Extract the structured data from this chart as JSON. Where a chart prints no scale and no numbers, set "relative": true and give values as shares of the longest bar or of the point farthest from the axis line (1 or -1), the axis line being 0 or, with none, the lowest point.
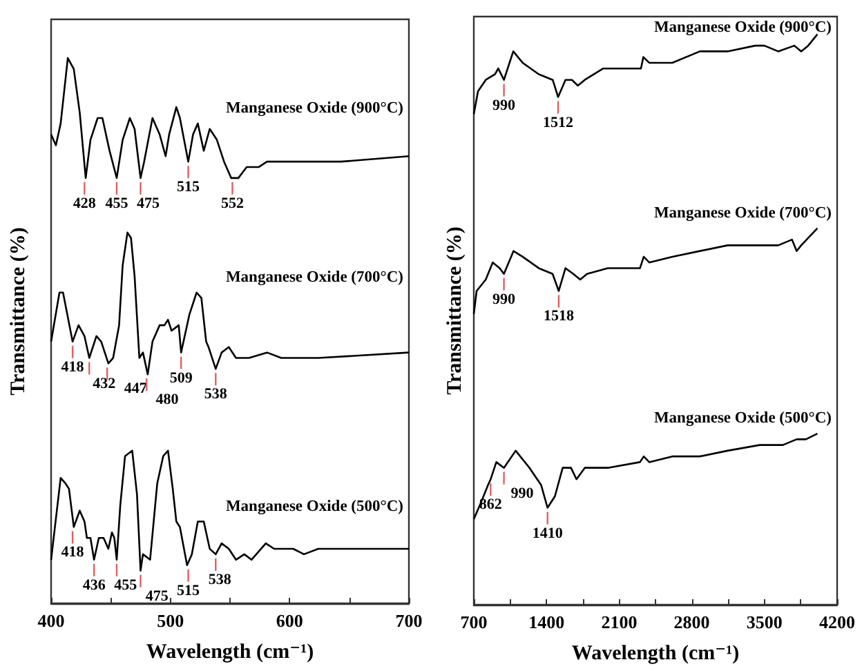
{
  "chart_data": [
    {
      "type": "line",
      "relative": true,
      "xlabel": "Wavelength (cm⁻¹)",
      "ylabel": "Transmittance (%)",
      "xlim": [
        400,
        700
      ],
      "xticks": [
        400,
        {
          "value": 450,
          "label": null
        },
        500,
        {
          "value": 550,
          "label": null
        },
        600,
        {
          "value": 650,
          "label": null
        },
        700
      ],
      "tick_labels": "x",
      "grid": false,
      "legend": false,
      "marker": "none",
      "line_style": "solid",
      "series": [
        {
          "name": "Manganese Oxide (900°C)",
          "color": "#000000",
          "x": [
            400,
            404,
            408,
            414,
            419,
            424,
            429,
            433,
            439,
            443,
            449,
            455,
            460,
            466,
            470,
            475,
            478,
            485,
            491,
            496,
            499,
            505,
            508,
            515,
            519,
            523,
            528,
            533,
            539,
            545,
            551,
            557,
            564,
            574,
            581,
            589,
            604,
            643,
            700
          ],
          "values": [
            0.86,
            0.84,
            0.88,
            1.0,
            0.98,
            0.9,
            0.78,
            0.85,
            0.89,
            0.89,
            0.83,
            0.78,
            0.85,
            0.89,
            0.87,
            0.78,
            0.81,
            0.89,
            0.86,
            0.82,
            0.86,
            0.91,
            0.89,
            0.81,
            0.86,
            0.88,
            0.83,
            0.87,
            0.85,
            0.81,
            0.78,
            0.78,
            0.8,
            0.8,
            0.81,
            0.81,
            0.81,
            0.81,
            0.82
          ]
        },
        {
          "name": "Manganese Oxide (700°C)",
          "color": "#000000",
          "x": [
            400,
            407,
            410,
            418,
            423,
            428,
            432,
            438,
            442,
            448,
            452,
            457,
            460,
            464,
            467,
            470,
            474,
            477,
            481,
            485,
            491,
            495,
            498,
            501,
            507,
            509,
            516,
            522,
            526,
            530,
            532,
            538,
            543,
            549,
            555,
            566,
            581,
            593,
            624,
            700
          ],
          "values": [
            0.48,
            0.57,
            0.57,
            0.48,
            0.51,
            0.49,
            0.45,
            0.49,
            0.48,
            0.44,
            0.45,
            0.51,
            0.62,
            0.68,
            0.67,
            0.6,
            0.45,
            0.46,
            0.42,
            0.48,
            0.51,
            0.51,
            0.52,
            0.5,
            0.51,
            0.46,
            0.53,
            0.57,
            0.56,
            0.48,
            0.47,
            0.43,
            0.46,
            0.47,
            0.45,
            0.45,
            0.46,
            0.45,
            0.45,
            0.46
          ]
        },
        {
          "name": "Manganese Oxide (500°C)",
          "color": "#000000",
          "x": [
            400,
            408,
            412,
            415,
            419,
            424,
            428,
            430,
            433,
            436,
            440,
            444,
            448,
            451,
            453,
            455,
            458,
            462,
            468,
            472,
            475,
            477,
            483,
            489,
            494,
            498,
            502,
            505,
            508,
            514,
            518,
            523,
            528,
            533,
            538,
            543,
            549,
            555,
            562,
            568,
            580,
            587,
            603,
            612,
            624,
            700
          ],
          "values": [
            0.08,
            0.23,
            0.22,
            0.21,
            0.14,
            0.17,
            0.15,
            0.12,
            0.12,
            0.08,
            0.12,
            0.12,
            0.1,
            0.13,
            0.12,
            0.08,
            0.18,
            0.27,
            0.28,
            0.2,
            0.06,
            0.09,
            0.08,
            0.22,
            0.27,
            0.28,
            0.21,
            0.15,
            0.14,
            0.07,
            0.09,
            0.15,
            0.15,
            0.1,
            0.09,
            0.11,
            0.1,
            0.08,
            0.09,
            0.08,
            0.11,
            0.1,
            0.1,
            0.09,
            0.1,
            0.1
          ]
        }
      ],
      "annotations": [
        {
          "text": "428",
          "x": 428,
          "y": 0.78
        },
        {
          "text": "455",
          "x": 455,
          "y": 0.78
        },
        {
          "text": "475",
          "x": 475,
          "y": 0.78
        },
        {
          "text": "515",
          "x": 515,
          "y": 0.81
        },
        {
          "text": "552",
          "x": 552,
          "y": 0.78
        },
        {
          "text": "418",
          "x": 418,
          "y": 0.48
        },
        {
          "text": "432",
          "x": 432,
          "y": 0.45
        },
        {
          "text": "447",
          "x": 447,
          "y": 0.44
        },
        {
          "text": "480",
          "x": 480,
          "y": 0.42
        },
        {
          "text": "509",
          "x": 509,
          "y": 0.46
        },
        {
          "text": "538",
          "x": 538,
          "y": 0.43
        },
        {
          "text": "418",
          "x": 418,
          "y": 0.14
        },
        {
          "text": "436",
          "x": 436,
          "y": 0.08
        },
        {
          "text": "455",
          "x": 455,
          "y": 0.08
        },
        {
          "text": "475",
          "x": 475,
          "y": 0.06
        },
        {
          "text": "515",
          "x": 515,
          "y": 0.07
        },
        {
          "text": "538",
          "x": 538,
          "y": 0.09
        }
      ]
    },
    {
      "type": "line",
      "relative": true,
      "xlabel": "Wavelength (cm⁻¹)",
      "ylabel": "Transmittance (%)",
      "xlim": [
        700,
        4200
      ],
      "xticks": [
        700,
        {
          "value": 1050,
          "label": null
        },
        1400,
        {
          "value": 1750,
          "label": null
        },
        2100,
        {
          "value": 2450,
          "label": null
        },
        2800,
        {
          "value": 3150,
          "label": null
        },
        3500,
        {
          "value": 3850,
          "label": null
        },
        4200
      ],
      "tick_labels": "x",
      "grid": false,
      "legend": false,
      "marker": "none",
      "line_style": "solid",
      "series": [
        {
          "name": "Manganese Oxide (900°C)",
          "color": "#000000",
          "x": [
            700,
            740,
            815,
            905,
            935,
            990,
            1080,
            1170,
            1325,
            1460,
            1512,
            1583,
            1645,
            1702,
            1769,
            1947,
            2168,
            2310,
            2333,
            2390,
            2612,
            2878,
            3145,
            3411,
            3499,
            3632,
            3788,
            3854,
            3921,
            4010
          ],
          "values": [
            0.86,
            0.9,
            0.92,
            0.93,
            0.94,
            0.92,
            0.97,
            0.95,
            0.93,
            0.92,
            0.89,
            0.92,
            0.92,
            0.91,
            0.92,
            0.94,
            0.94,
            0.94,
            0.96,
            0.95,
            0.95,
            0.97,
            0.97,
            0.98,
            0.98,
            0.97,
            0.98,
            0.97,
            0.98,
            1.0
          ]
        },
        {
          "name": "Manganese Oxide (700°C)",
          "color": "#000000",
          "x": [
            700,
            727,
            815,
            882,
            949,
            990,
            1082,
            1170,
            1325,
            1459,
            1518,
            1583,
            1658,
            1725,
            1791,
            1991,
            2301,
            2337,
            2390,
            2612,
            2878,
            3145,
            3455,
            3632,
            3765,
            3810,
            3854,
            4010
          ],
          "values": [
            0.51,
            0.55,
            0.57,
            0.6,
            0.59,
            0.58,
            0.62,
            0.61,
            0.59,
            0.58,
            0.55,
            0.59,
            0.58,
            0.57,
            0.58,
            0.59,
            0.59,
            0.61,
            0.6,
            0.61,
            0.62,
            0.63,
            0.63,
            0.63,
            0.64,
            0.62,
            0.63,
            0.66
          ]
        },
        {
          "name": "Manganese Oxide (500°C)",
          "color": "#000000",
          "x": [
            700,
            771,
            837,
            862,
            917,
            990,
            1103,
            1236,
            1348,
            1410,
            1481,
            1556,
            1636,
            1689,
            1769,
            1991,
            2301,
            2337,
            2390,
            2612,
            2878,
            3145,
            3455,
            3677,
            3810,
            3899,
            4010
          ],
          "values": [
            0.15,
            0.18,
            0.21,
            0.22,
            0.25,
            0.24,
            0.27,
            0.24,
            0.21,
            0.17,
            0.19,
            0.24,
            0.24,
            0.22,
            0.24,
            0.24,
            0.25,
            0.26,
            0.25,
            0.26,
            0.26,
            0.27,
            0.28,
            0.28,
            0.29,
            0.29,
            0.3
          ]
        }
      ],
      "annotations": [
        {
          "text": "990",
          "x": 990,
          "y": 0.92
        },
        {
          "text": "1512",
          "x": 1512,
          "y": 0.89
        },
        {
          "text": "990",
          "x": 990,
          "y": 0.58
        },
        {
          "text": "1518",
          "x": 1518,
          "y": 0.55
        },
        {
          "text": "862",
          "x": 862,
          "y": 0.22
        },
        {
          "text": "990",
          "x": 990,
          "y": 0.24
        },
        {
          "text": "1410",
          "x": 1410,
          "y": 0.17
        }
      ]
    }
  ]
}
